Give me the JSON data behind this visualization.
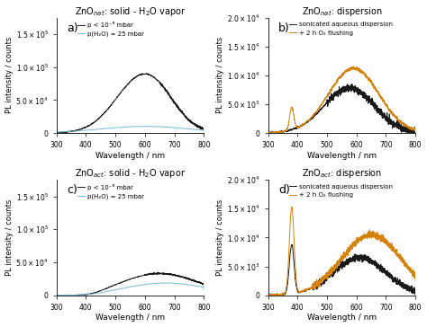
{
  "title_a": "ZnO$_{nat}$: solid - H$_2$O vapor",
  "title_b": "ZnO$_{nat}$: dispersion",
  "title_c": "ZnO$_{act}$: solid - H$_2$O vapor",
  "title_d": "ZnO$_{act}$: dispersion",
  "xlabel": "Wavelength / nm",
  "ylabel": "PL intensity / counts",
  "xlim": [
    300,
    800
  ],
  "color_black": "#1a1a1a",
  "color_blue": "#7ab8d9",
  "color_orange": "#d4820a",
  "legend_a": [
    "p < 10⁻⁶ mbar",
    "p(H₂O) = 25 mbar"
  ],
  "legend_b": [
    "sonicated aqueous dispersion",
    "+ 2 h O₂ flushing"
  ],
  "label_a": "a)",
  "label_b": "b)",
  "label_c": "c)",
  "label_d": "d)"
}
